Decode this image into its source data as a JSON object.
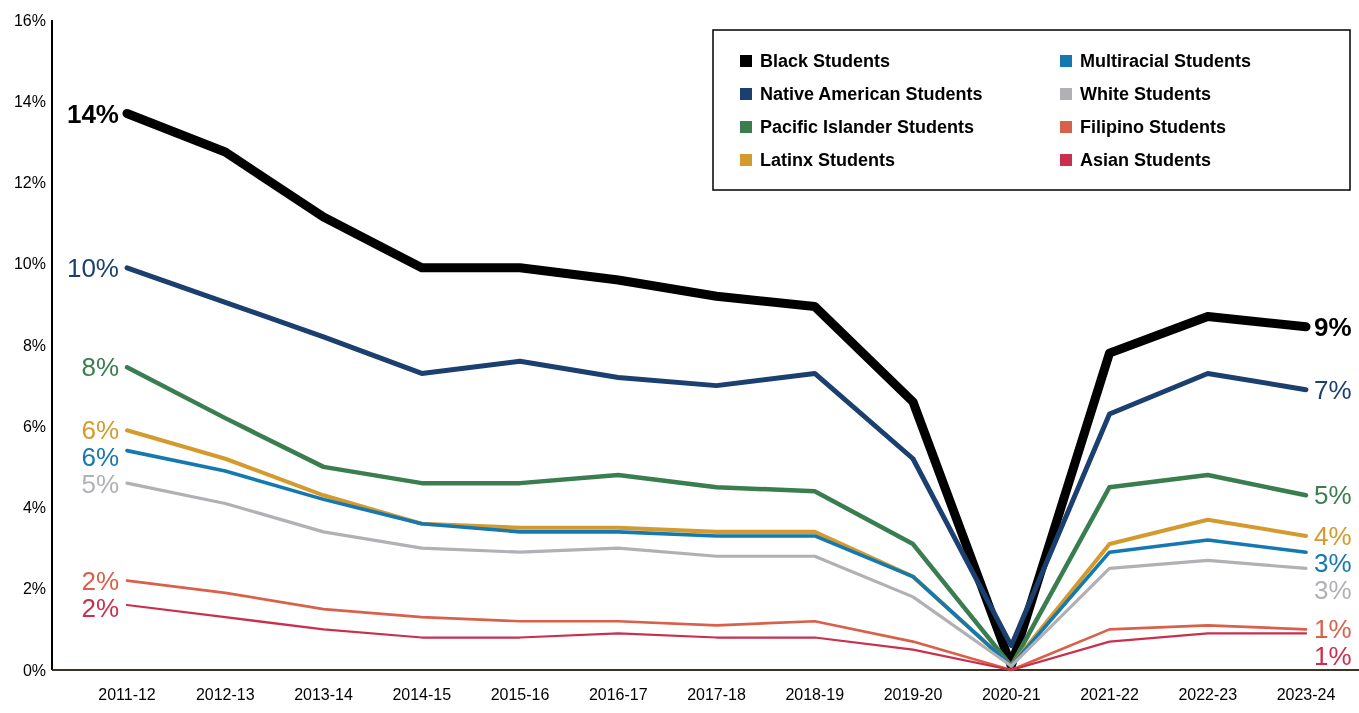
{
  "chart_data": {
    "type": "line",
    "categories": [
      "2011-12",
      "2012-13",
      "2013-14",
      "2014-15",
      "2015-16",
      "2016-17",
      "2017-18",
      "2018-19",
      "2019-20",
      "2020-21",
      "2021-22",
      "2022-23",
      "2023-24"
    ],
    "series": [
      {
        "name": "Black Students",
        "color": "#000000",
        "values": [
          13.7,
          12.75,
          11.15,
          9.9,
          9.9,
          9.6,
          9.2,
          8.95,
          6.6,
          0.1,
          7.8,
          8.7,
          8.45
        ]
      },
      {
        "name": "Native American Students",
        "color": "#1b3f6e",
        "values": [
          9.9,
          9.05,
          8.2,
          7.3,
          7.6,
          7.2,
          7.0,
          7.3,
          5.2,
          0.6,
          6.3,
          7.3,
          6.9
        ]
      },
      {
        "name": "Pacific Islander Students",
        "color": "#3a7d4f",
        "values": [
          7.45,
          6.2,
          5.0,
          4.6,
          4.6,
          4.8,
          4.5,
          4.4,
          3.1,
          0.1,
          4.5,
          4.8,
          4.3
        ]
      },
      {
        "name": "Latinx Students",
        "color": "#d49a2e",
        "values": [
          5.9,
          5.2,
          4.3,
          3.6,
          3.5,
          3.5,
          3.4,
          3.4,
          2.3,
          0.1,
          3.1,
          3.7,
          3.3
        ]
      },
      {
        "name": "Multiracial Students",
        "color": "#1479b0",
        "values": [
          5.4,
          4.9,
          4.2,
          3.6,
          3.4,
          3.4,
          3.3,
          3.3,
          2.3,
          0.1,
          2.9,
          3.2,
          2.9
        ]
      },
      {
        "name": "White Students",
        "color": "#b0b0b5",
        "values": [
          4.6,
          4.1,
          3.4,
          3.0,
          2.9,
          3.0,
          2.8,
          2.8,
          1.8,
          0.1,
          2.5,
          2.7,
          2.5
        ]
      },
      {
        "name": "Filipino Students",
        "color": "#d9604a",
        "values": [
          2.2,
          1.9,
          1.5,
          1.3,
          1.2,
          1.2,
          1.1,
          1.2,
          0.7,
          0.0,
          1.0,
          1.1,
          1.0
        ]
      },
      {
        "name": "Asian Students",
        "color": "#c8304e",
        "values": [
          1.6,
          1.3,
          1.0,
          0.8,
          0.8,
          0.9,
          0.8,
          0.8,
          0.5,
          0.0,
          0.7,
          0.9,
          0.9
        ]
      }
    ],
    "ylim": [
      0,
      16
    ],
    "yticks": [
      {
        "value": 0,
        "label": "0%"
      },
      {
        "value": 2,
        "label": "2%"
      },
      {
        "value": 4,
        "label": "4%"
      },
      {
        "value": 6,
        "label": "6%"
      },
      {
        "value": 8,
        "label": "8%"
      },
      {
        "value": 10,
        "label": "10%"
      },
      {
        "value": 12,
        "label": "12%"
      },
      {
        "value": 14,
        "label": "14%"
      },
      {
        "value": 16,
        "label": "16%"
      }
    ],
    "grid": false,
    "legend": "top right",
    "marker": "none",
    "annotations": [
      {
        "text": "14%",
        "x": "2011-12",
        "y": 13.7
      },
      {
        "text": "10%",
        "x": "2011-12",
        "y": 9.9
      },
      {
        "text": "8%",
        "x": "2011-12",
        "y": 7.45
      },
      {
        "text": "6%",
        "x": "2011-12",
        "y": 5.9
      },
      {
        "text": "6%",
        "x": "2011-12",
        "y": 5.4
      },
      {
        "text": "5%",
        "x": "2011-12",
        "y": 4.6
      },
      {
        "text": "2%",
        "x": "2011-12",
        "y": 2.2
      },
      {
        "text": "2%",
        "x": "2011-12",
        "y": 1.6
      },
      {
        "text": "9%",
        "x": "2023-24",
        "y": 8.45
      },
      {
        "text": "7%",
        "x": "2023-24",
        "y": 6.9
      },
      {
        "text": "5%",
        "x": "2023-24",
        "y": 4.3
      },
      {
        "text": "4%",
        "x": "2023-24",
        "y": 3.3
      },
      {
        "text": "3%",
        "x": "2023-24",
        "y": 2.9
      },
      {
        "text": "3%",
        "x": "2023-24",
        "y": 2.5
      },
      {
        "text": "1%",
        "x": "2023-24",
        "y": 1.0
      },
      {
        "text": "1%",
        "x": "2023-24",
        "y": 0.9
      }
    ]
  }
}
